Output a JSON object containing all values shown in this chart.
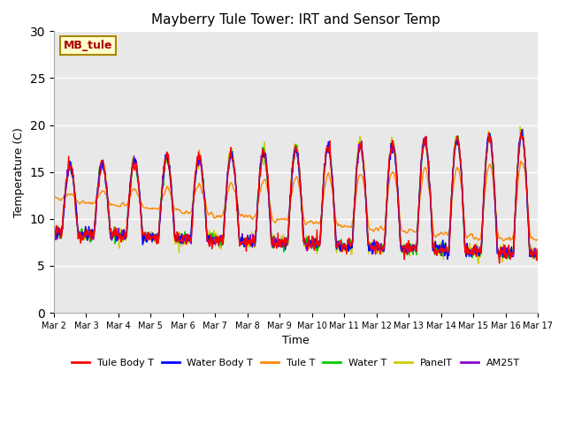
{
  "title": "Mayberry Tule Tower: IRT and Sensor Temp",
  "xlabel": "Time",
  "ylabel": "Temperature (C)",
  "ylim": [
    0,
    30
  ],
  "yticks": [
    0,
    5,
    10,
    15,
    20,
    25,
    30
  ],
  "num_days": 15,
  "label_box_text": "MB_tule",
  "label_box_color": "#ffffcc",
  "label_box_edge": "#aa8800",
  "label_box_text_color": "#aa0000",
  "bg_color": "#e8e8e8",
  "series_colors": {
    "Tule Body T": "#ff0000",
    "Water Body T": "#0000ff",
    "Tule T": "#ff8800",
    "Water T": "#00cc00",
    "PanelT": "#cccc00",
    "AM25T": "#8800cc"
  },
  "series_lw": 1.0,
  "pts_per_day": 48
}
